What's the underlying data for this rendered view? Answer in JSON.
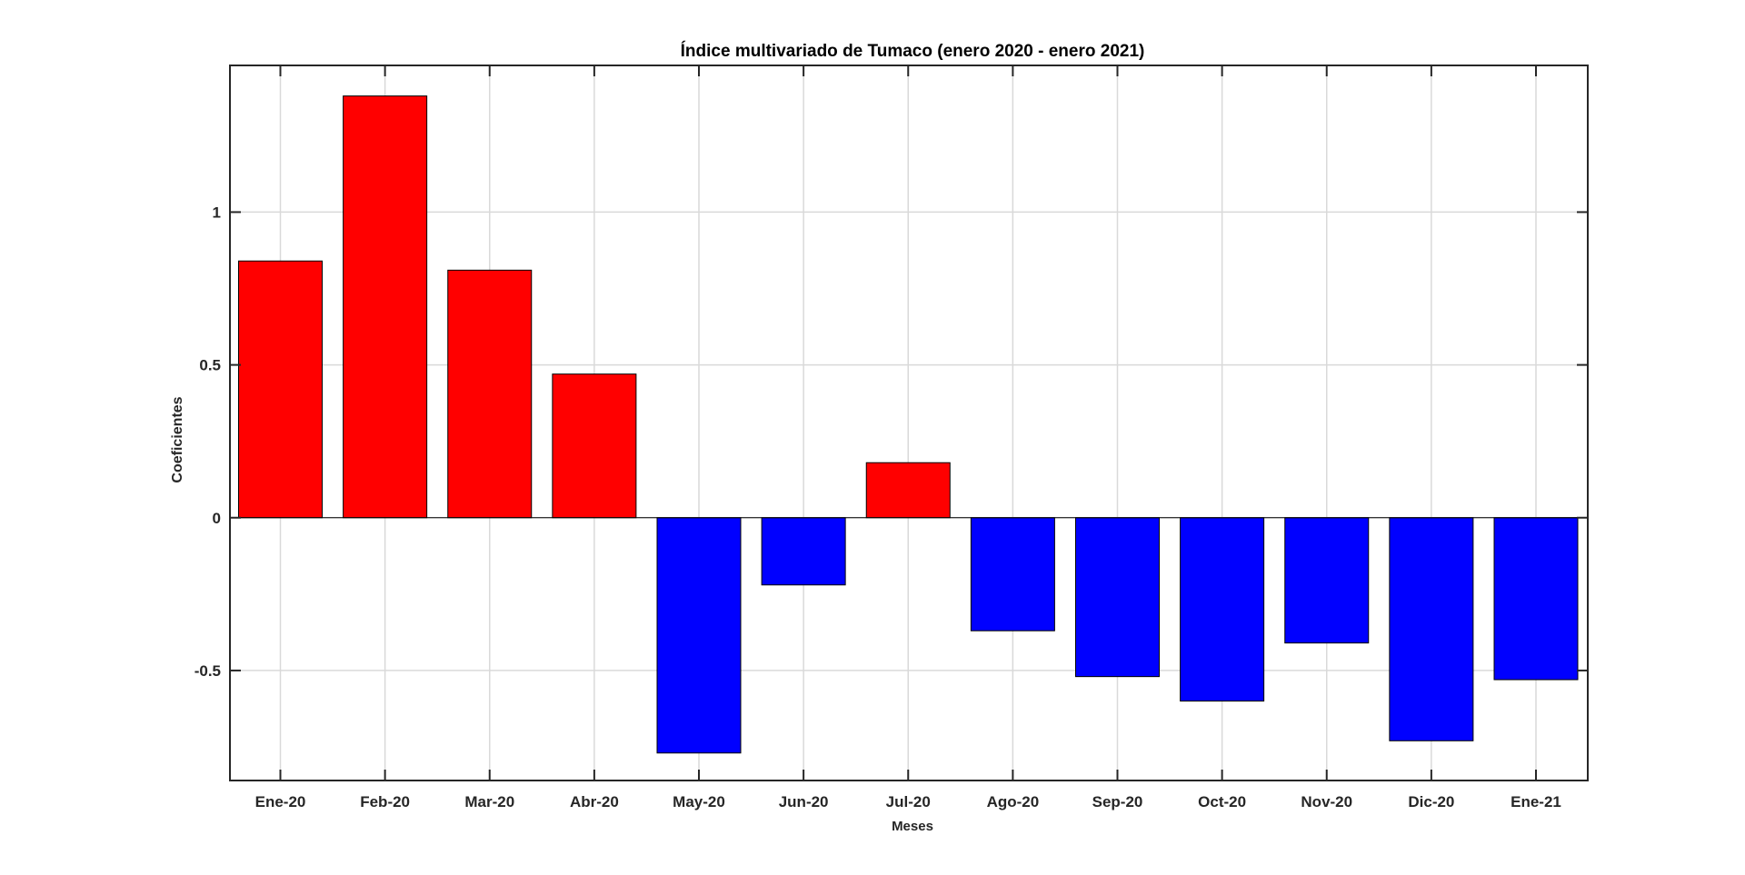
{
  "chart_data": {
    "type": "bar",
    "title": "Índice multivariado de Tumaco (enero 2020 - enero  2021)",
    "xlabel": "Meses",
    "ylabel": "Coeficientes",
    "categories": [
      "Ene-20",
      "Feb-20",
      "Mar-20",
      "Abr-20",
      "May-20",
      "Jun-20",
      "Jul-20",
      "Ago-20",
      "Sep-20",
      "Oct-20",
      "Nov-20",
      "Dic-20",
      "Ene-21"
    ],
    "values": [
      0.84,
      1.38,
      0.81,
      0.47,
      -0.77,
      -0.22,
      0.18,
      -0.37,
      -0.52,
      -0.6,
      -0.41,
      -0.73,
      -0.53
    ],
    "ylim": [
      -0.86,
      1.48
    ],
    "yticks": [
      -0.5,
      0,
      0.5,
      1
    ],
    "ytick_labels": [
      "-0.5",
      "0",
      "0.5",
      "1"
    ],
    "grid": true,
    "colors": {
      "positive": "#ff0000",
      "negative": "#0000ff",
      "edge": "#000000",
      "grid": "#d9d9d9",
      "axis": "#262626"
    }
  }
}
